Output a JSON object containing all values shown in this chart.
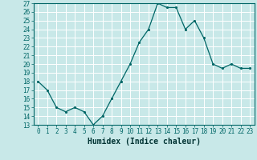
{
  "x": [
    0,
    1,
    2,
    3,
    4,
    5,
    6,
    7,
    8,
    9,
    10,
    11,
    12,
    13,
    14,
    15,
    16,
    17,
    18,
    19,
    20,
    21,
    22,
    23
  ],
  "y": [
    18,
    17,
    15,
    14.5,
    15,
    14.5,
    13,
    14,
    16,
    18,
    20,
    22.5,
    24,
    27,
    26.5,
    26.5,
    24,
    25,
    23,
    20,
    19.5,
    20,
    19.5,
    19.5
  ],
  "xlabel": "Humidex (Indice chaleur)",
  "ylim": [
    13,
    27
  ],
  "xlim": [
    -0.5,
    23.5
  ],
  "yticks": [
    13,
    14,
    15,
    16,
    17,
    18,
    19,
    20,
    21,
    22,
    23,
    24,
    25,
    26,
    27
  ],
  "xticks": [
    0,
    1,
    2,
    3,
    4,
    5,
    6,
    7,
    8,
    9,
    10,
    11,
    12,
    13,
    14,
    15,
    16,
    17,
    18,
    19,
    20,
    21,
    22,
    23
  ],
  "line_color": "#006666",
  "marker_color": "#006666",
  "bg_color": "#c8e8e8",
  "grid_color": "#ffffff",
  "spine_color": "#006666",
  "tick_label_fontsize": 5.5,
  "xlabel_fontsize": 7.0
}
